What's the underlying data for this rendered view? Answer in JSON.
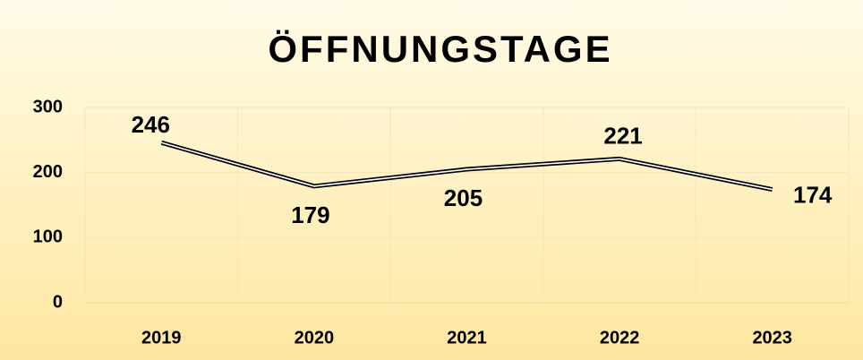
{
  "chart_data": {
    "type": "line",
    "title": "ÖFFNUNGSTAGE",
    "categories": [
      "2019",
      "2020",
      "2021",
      "2022",
      "2023"
    ],
    "values": [
      246,
      179,
      205,
      221,
      174
    ],
    "color": "#000000",
    "ylim": [
      0,
      300
    ],
    "yticks": [
      0,
      100,
      200,
      300
    ],
    "grid": true
  }
}
